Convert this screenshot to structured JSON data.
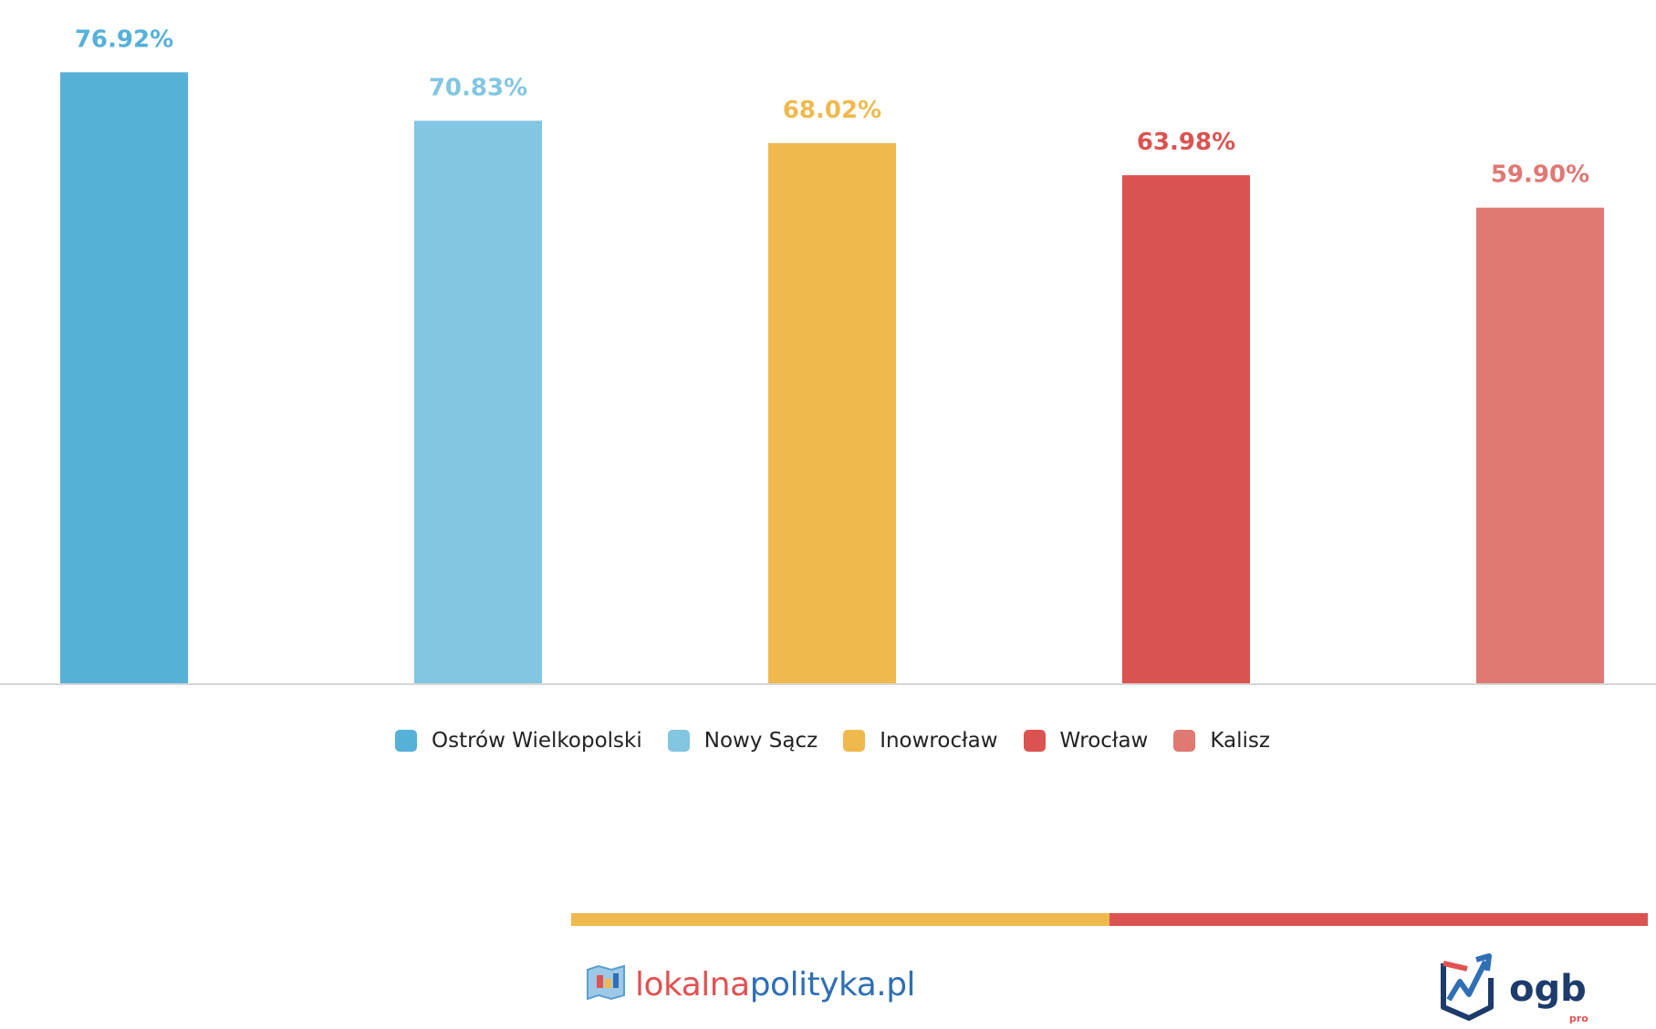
{
  "chart_data": {
    "type": "bar",
    "categories": [
      "Ostrów Wielkopolski",
      "Nowy Sącz",
      "Inowrocław",
      "Wrocław",
      "Kalisz"
    ],
    "values": [
      76.92,
      70.83,
      68.02,
      63.98,
      59.9
    ],
    "value_labels": [
      "76.92%",
      "70.83%",
      "68.02%",
      "63.98%",
      "59.90%"
    ],
    "colors": [
      "#56b1d8",
      "#82c6e1",
      "#f0b94e",
      "#db5351",
      "#e07873"
    ],
    "title": "",
    "xlabel": "",
    "ylabel": "",
    "ylim": [
      0,
      100
    ],
    "grid": false,
    "legend_position": "bottom"
  },
  "legend": {
    "items": [
      {
        "label": "Ostrów Wielkopolski",
        "color": "#56b1d8"
      },
      {
        "label": "Nowy Sącz",
        "color": "#82c6e1"
      },
      {
        "label": "Inowrocław",
        "color": "#f0b94e"
      },
      {
        "label": "Wrocław",
        "color": "#db5351"
      },
      {
        "label": "Kalisz",
        "color": "#e07873"
      }
    ]
  },
  "footer": {
    "stripe_colors": [
      "#f0b94e",
      "#db5351"
    ],
    "brand_left": {
      "part1": "lokalna",
      "part2": "polityka.pl",
      "color1": "#e05252",
      "color2": "#2f6fb5",
      "icon": "map-icon"
    },
    "brand_right": {
      "name": "ogb",
      "sub": "pro",
      "icon": "chart-arrow-icon"
    }
  }
}
